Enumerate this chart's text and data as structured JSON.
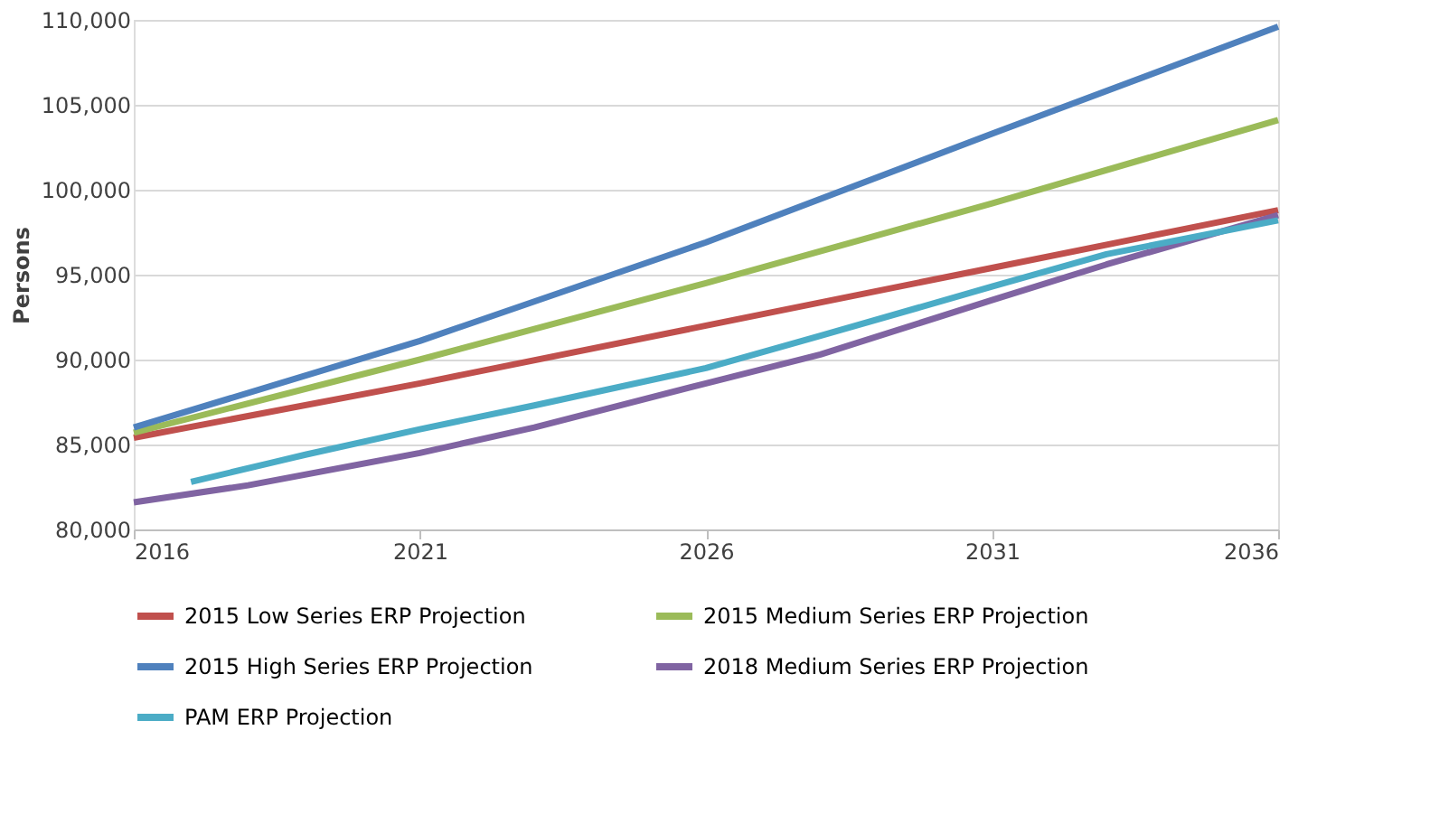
{
  "chart_data": {
    "type": "line",
    "ylabel": "Persons",
    "xlim": [
      2016,
      2036
    ],
    "xticks": [
      2016,
      2021,
      2026,
      2031,
      2036
    ],
    "ylim": [
      80000,
      110000
    ],
    "yticks": [
      {
        "value": 80000,
        "label": "80,000"
      },
      {
        "value": 85000,
        "label": "85,000"
      },
      {
        "value": 90000,
        "label": "90,000"
      },
      {
        "value": 95000,
        "label": "95,000"
      },
      {
        "value": 100000,
        "label": "100,000"
      },
      {
        "value": 105000,
        "label": "105,000"
      },
      {
        "value": 110000,
        "label": "110,000"
      }
    ],
    "grid": "y",
    "legend": "bottom",
    "line_style": "solid",
    "marker": "none",
    "series": [
      {
        "name": "2015 Low Series ERP Projection",
        "color": "#c0504d",
        "x": [
          2016,
          2021,
          2026,
          2031,
          2036
        ],
        "values": [
          85400,
          88600,
          92000,
          95400,
          98800
        ]
      },
      {
        "name": "2015 Medium Series ERP Projection",
        "color": "#9bbb59",
        "x": [
          2016,
          2021,
          2026,
          2031,
          2036
        ],
        "values": [
          85700,
          90000,
          94500,
          99200,
          104100
        ]
      },
      {
        "name": "2015 High Series ERP Projection",
        "color": "#4f81bd",
        "x": [
          2016,
          2021,
          2026,
          2031,
          2036
        ],
        "values": [
          86000,
          91100,
          96900,
          103300,
          109600
        ]
      },
      {
        "name": "2018 Medium Series ERP Projection",
        "color": "#8064a2",
        "x": [
          2016,
          2018,
          2021,
          2023,
          2026,
          2028,
          2031,
          2033,
          2036
        ],
        "values": [
          81600,
          82600,
          84500,
          86000,
          88600,
          90300,
          93500,
          95600,
          98500
        ]
      },
      {
        "name": "PAM ERP Projection",
        "color": "#4bacc6",
        "x": [
          2017,
          2019,
          2021,
          2023,
          2026,
          2028,
          2031,
          2033,
          2036
        ],
        "values": [
          82800,
          84400,
          85900,
          87300,
          89500,
          91400,
          94300,
          96200,
          98200
        ]
      }
    ]
  }
}
